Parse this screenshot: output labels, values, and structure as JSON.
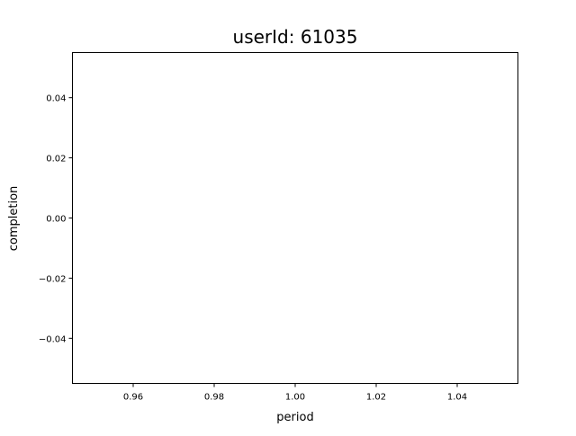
{
  "chart_data": {
    "type": "scatter",
    "title": "userId: 61035",
    "xlabel": "period",
    "ylabel": "completion",
    "xlim": [
      0.945,
      1.055
    ],
    "ylim": [
      -0.055,
      0.055
    ],
    "xticks": [
      "0.96",
      "0.98",
      "1.00",
      "1.02",
      "1.04"
    ],
    "yticks": [
      "0.04",
      "0.02",
      "0.00",
      "−0.02",
      "−0.04"
    ],
    "series": [],
    "grid": false
  }
}
